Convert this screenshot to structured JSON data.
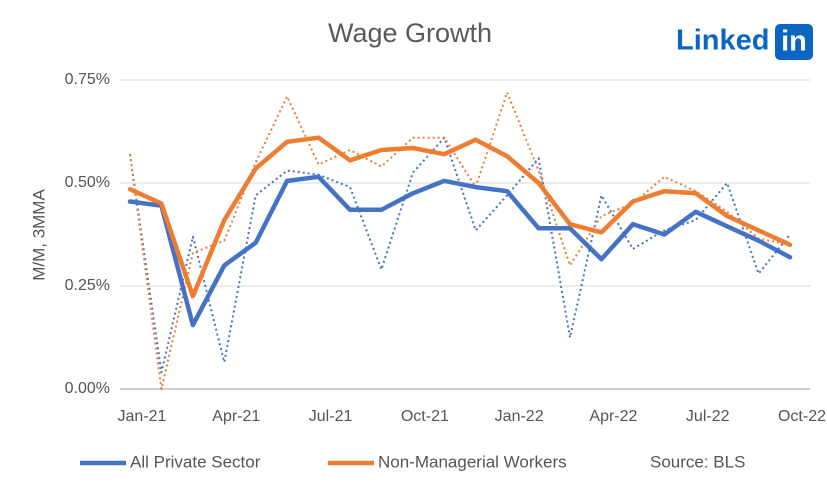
{
  "chart_data": {
    "type": "line",
    "title": "Wage Growth",
    "ylabel": "M/M, 3MMA",
    "source": "Source: BLS",
    "logo": {
      "text": "Linked",
      "badge": "in"
    },
    "categories": [
      "Jan-21",
      null,
      null,
      "Apr-21",
      null,
      null,
      "Jul-21",
      null,
      null,
      "Oct-21",
      null,
      null,
      "Jan-22",
      null,
      null,
      "Apr-22",
      null,
      null,
      "Jul-22",
      null,
      null,
      "Oct-22"
    ],
    "series": [
      {
        "color": "#4472c4",
        "dashed": true,
        "values": [
          0.57,
          0.04,
          0.37,
          0.065,
          0.47,
          0.53,
          0.52,
          0.49,
          0.29,
          0.525,
          0.61,
          0.385,
          0.47,
          0.56,
          0.125,
          0.47,
          0.34,
          0.385,
          0.41,
          0.5,
          0.28,
          0.375
        ]
      },
      {
        "color": "#ed7d31",
        "dashed": true,
        "values": [
          0.57,
          0.0,
          0.33,
          0.36,
          0.55,
          0.71,
          0.545,
          0.58,
          0.54,
          0.61,
          0.61,
          0.49,
          0.72,
          0.53,
          0.3,
          0.42,
          0.45,
          0.515,
          0.48,
          0.43,
          0.365,
          0.35
        ]
      },
      {
        "name": "All Private Sector",
        "color": "#4472c4",
        "dashed": false,
        "values": [
          0.455,
          0.445,
          0.155,
          0.3,
          0.355,
          0.505,
          0.515,
          0.435,
          0.435,
          0.475,
          0.505,
          0.49,
          0.48,
          0.39,
          0.39,
          0.315,
          0.4,
          0.375,
          0.43,
          0.395,
          0.36,
          0.32
        ]
      },
      {
        "name": "Non-Managerial Workers",
        "color": "#ed7d31",
        "dashed": false,
        "values": [
          0.485,
          0.45,
          0.225,
          0.41,
          0.535,
          0.6,
          0.61,
          0.555,
          0.58,
          0.585,
          0.57,
          0.605,
          0.565,
          0.5,
          0.4,
          0.38,
          0.455,
          0.48,
          0.475,
          0.42,
          0.385,
          0.35
        ]
      }
    ],
    "ylim": [
      0,
      0.75
    ],
    "yticks": [
      {
        "value": 0,
        "label": "0.00%"
      },
      {
        "value": 0.25,
        "label": "0.25%"
      },
      {
        "value": 0.5,
        "label": "0.50%"
      },
      {
        "value": 0.75,
        "label": "0.75%"
      }
    ],
    "grid": true
  }
}
